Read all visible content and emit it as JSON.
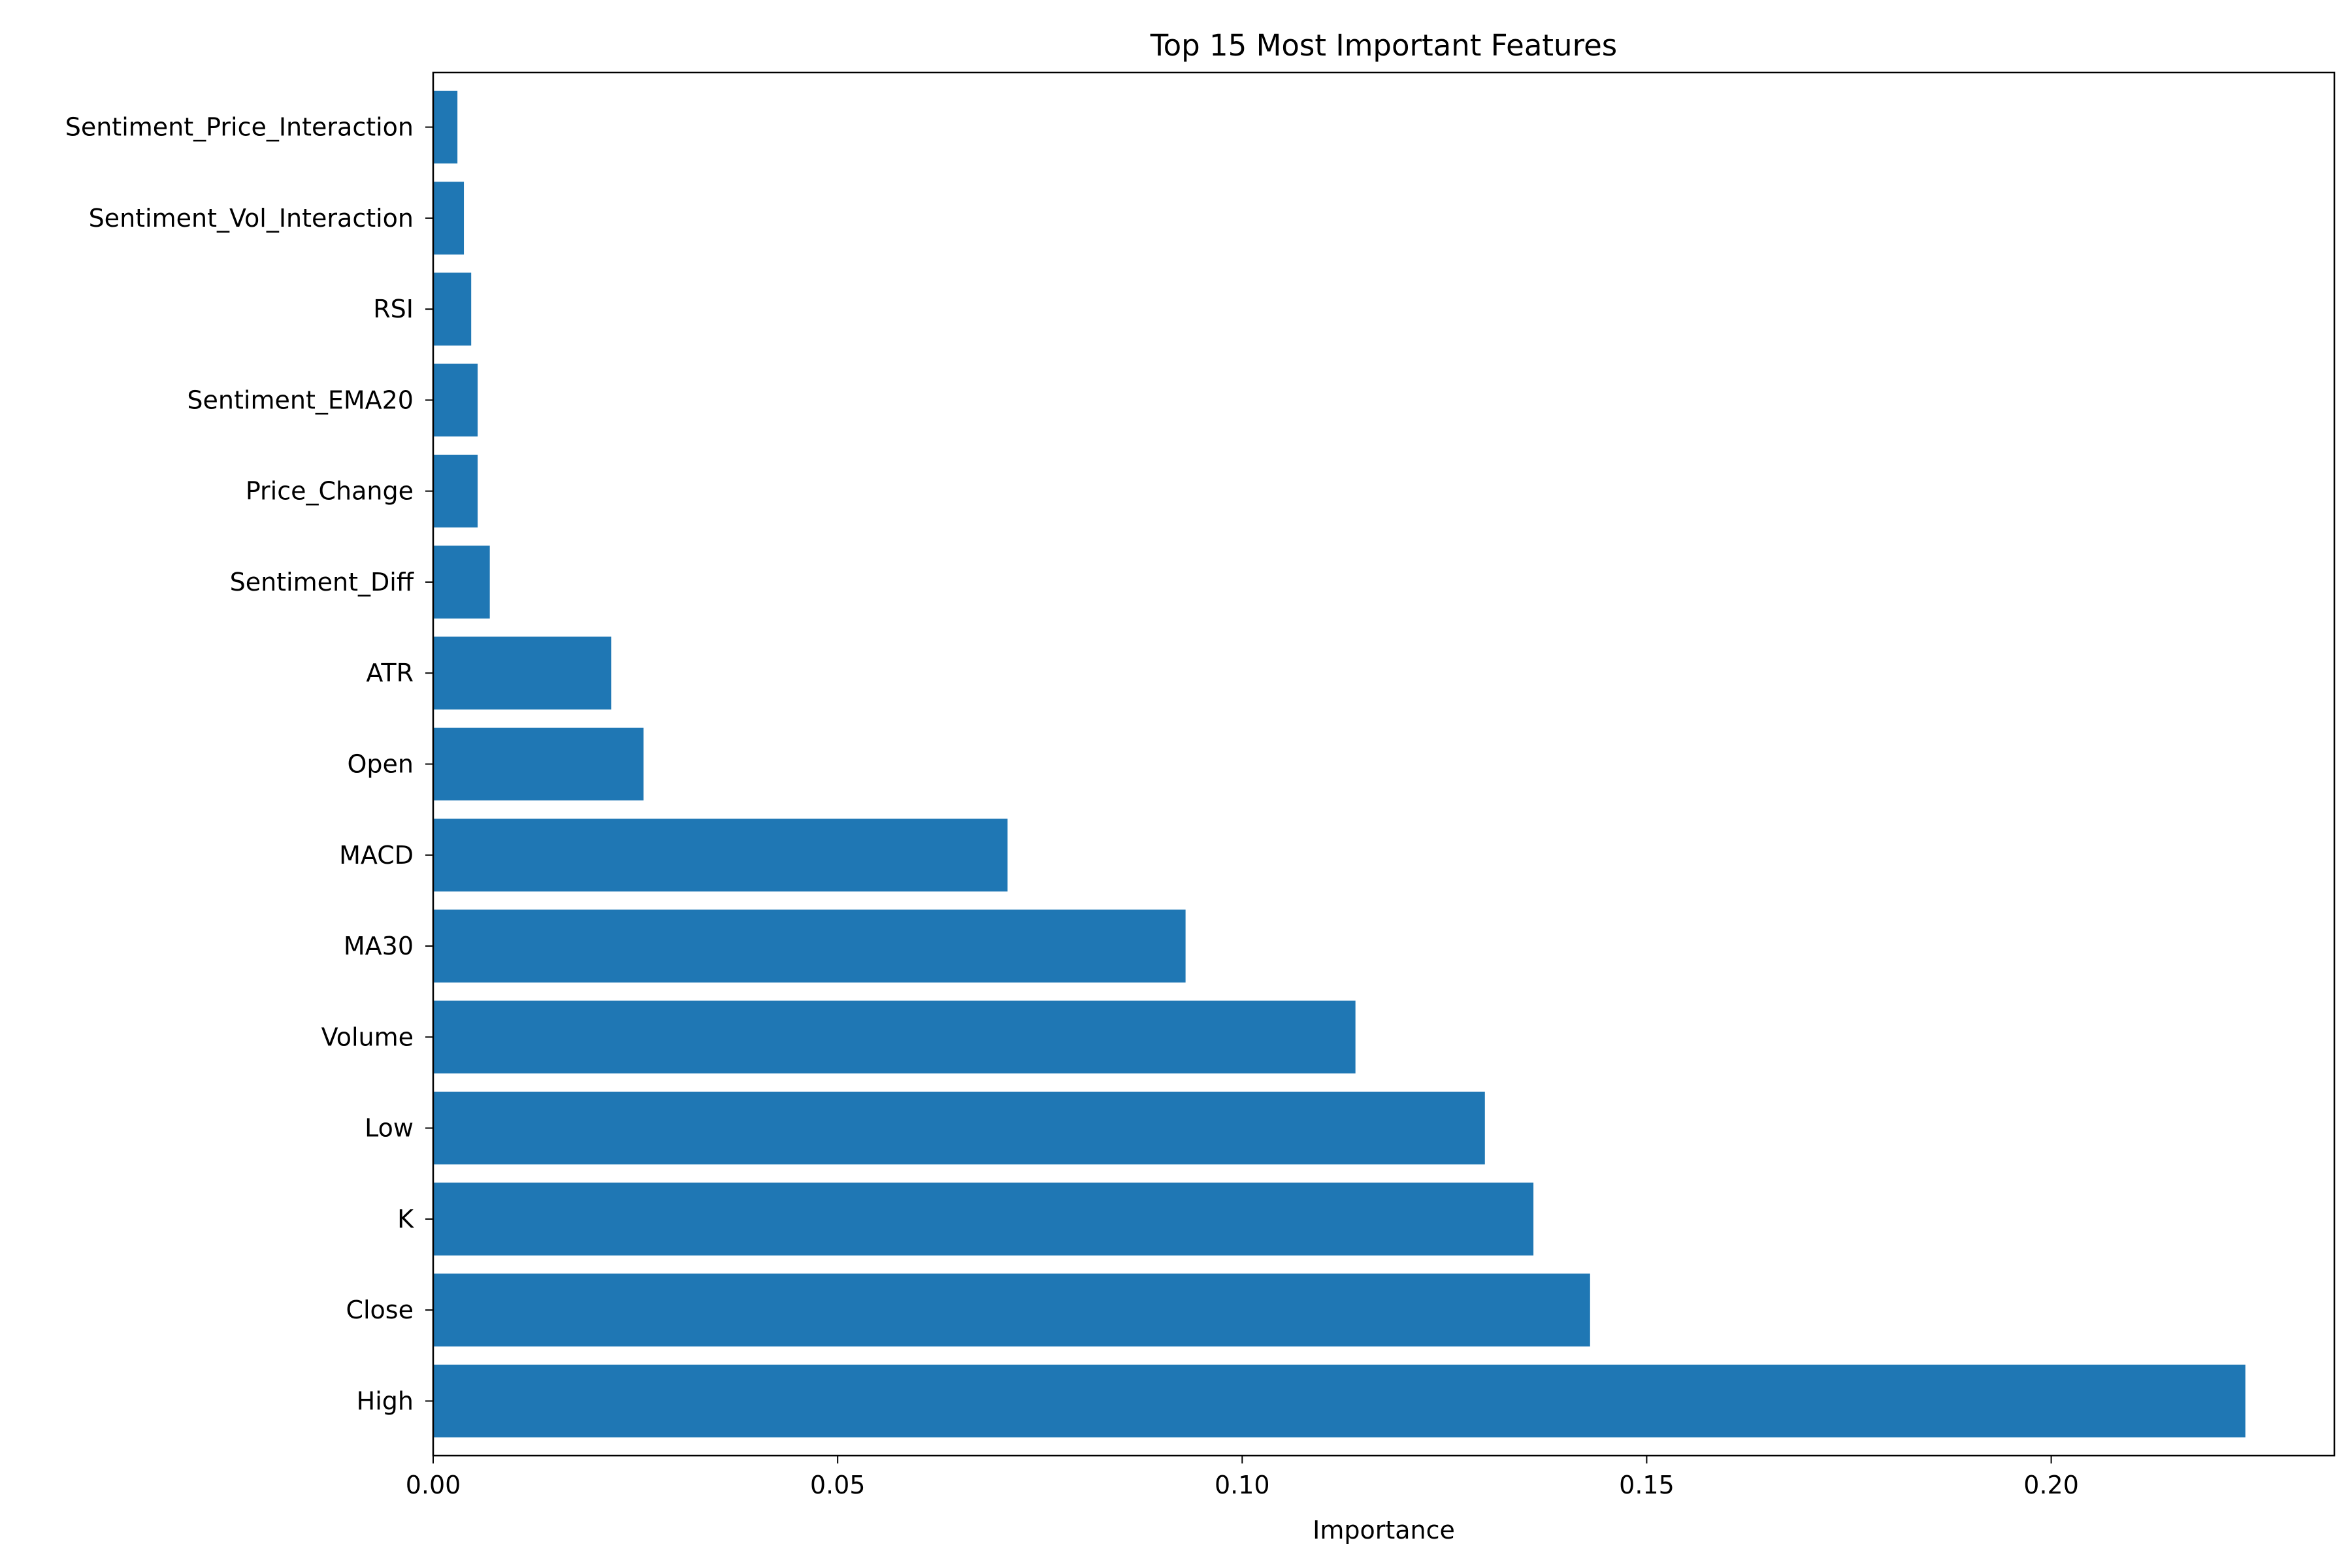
{
  "chart_data": {
    "type": "bar",
    "orientation": "horizontal",
    "title": "Top 15 Most Important Features",
    "xlabel": "Importance",
    "ylabel": "",
    "xlim": [
      0,
      0.235
    ],
    "xticks": [
      0.0,
      0.05,
      0.1,
      0.15,
      0.2
    ],
    "xtick_labels": [
      "0.00",
      "0.05",
      "0.10",
      "0.15",
      "0.20"
    ],
    "grid": false,
    "bar_color": "#1f77b4",
    "categories": [
      "High",
      "Close",
      "K",
      "Low",
      "Volume",
      "MA30",
      "MACD",
      "Open",
      "ATR",
      "Sentiment_Diff",
      "Price_Change",
      "Sentiment_EMA20",
      "RSI",
      "Sentiment_Vol_Interaction",
      "Sentiment_Price_Interaction"
    ],
    "values": [
      0.224,
      0.143,
      0.136,
      0.13,
      0.114,
      0.093,
      0.071,
      0.026,
      0.022,
      0.007,
      0.0055,
      0.0055,
      0.0047,
      0.0038,
      0.003
    ]
  }
}
